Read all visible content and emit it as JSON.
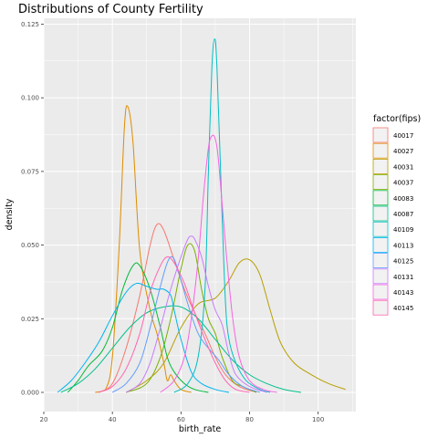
{
  "chart_data": {
    "type": "density",
    "title": "Distributions of County Fertility",
    "xlabel": "birth_rate",
    "ylabel": "density",
    "xlim": [
      20,
      111
    ],
    "ylim": [
      -0.0065,
      0.127
    ],
    "xticks": [
      20,
      40,
      60,
      80,
      100
    ],
    "yticks": [
      0.0,
      0.025,
      0.05,
      0.075,
      0.1,
      0.125
    ],
    "ytick_labels": [
      "0.000",
      "0.025",
      "0.050",
      "0.075",
      "0.100",
      "0.125"
    ],
    "grid": true,
    "legend_title": "factor(fips)",
    "legend_position": "right",
    "series": [
      {
        "name": "40017",
        "color": "#F8766D",
        "points": [
          [
            36,
            0
          ],
          [
            40,
            0.003
          ],
          [
            44,
            0.015
          ],
          [
            48,
            0.033
          ],
          [
            51,
            0.05
          ],
          [
            53,
            0.057
          ],
          [
            55,
            0.055
          ],
          [
            58,
            0.045
          ],
          [
            61,
            0.035
          ],
          [
            64,
            0.027
          ],
          [
            67,
            0.02
          ],
          [
            70,
            0.012
          ],
          [
            73,
            0.006
          ],
          [
            77,
            0.002
          ],
          [
            82,
            0
          ]
        ]
      },
      {
        "name": "40027",
        "color": "#DE8C00",
        "points": [
          [
            35,
            0
          ],
          [
            38,
            0.001
          ],
          [
            40,
            0.012
          ],
          [
            42,
            0.05
          ],
          [
            43.5,
            0.09
          ],
          [
            44.5,
            0.097
          ],
          [
            46,
            0.085
          ],
          [
            48,
            0.048
          ],
          [
            51,
            0.028
          ],
          [
            53,
            0.02
          ],
          [
            55,
            0.01
          ],
          [
            56,
            0.004
          ],
          [
            57,
            0.006
          ],
          [
            58,
            0.004
          ],
          [
            60,
            0.001
          ],
          [
            63,
            0
          ]
        ]
      },
      {
        "name": "40031",
        "color": "#B79F00",
        "points": [
          [
            44,
            0
          ],
          [
            50,
            0.004
          ],
          [
            55,
            0.01
          ],
          [
            60,
            0.022
          ],
          [
            65,
            0.03
          ],
          [
            70,
            0.032
          ],
          [
            74,
            0.038
          ],
          [
            77,
            0.044
          ],
          [
            80,
            0.045
          ],
          [
            83,
            0.04
          ],
          [
            86,
            0.028
          ],
          [
            89,
            0.017
          ],
          [
            93,
            0.01
          ],
          [
            98,
            0.006
          ],
          [
            103,
            0.003
          ],
          [
            108,
            0.001
          ]
        ]
      },
      {
        "name": "40037",
        "color": "#7CAE00",
        "points": [
          [
            44,
            0
          ],
          [
            50,
            0.003
          ],
          [
            54,
            0.012
          ],
          [
            57,
            0.025
          ],
          [
            60,
            0.042
          ],
          [
            62,
            0.05
          ],
          [
            64,
            0.048
          ],
          [
            66,
            0.035
          ],
          [
            68,
            0.025
          ],
          [
            70,
            0.02
          ],
          [
            72,
            0.012
          ],
          [
            75,
            0.004
          ],
          [
            78,
            0.002
          ],
          [
            82,
            0
          ]
        ]
      },
      {
        "name": "40083",
        "color": "#00BA38",
        "points": [
          [
            27,
            0
          ],
          [
            30,
            0.004
          ],
          [
            33,
            0.009
          ],
          [
            37,
            0.014
          ],
          [
            40,
            0.022
          ],
          [
            43,
            0.035
          ],
          [
            46,
            0.043
          ],
          [
            48,
            0.043
          ],
          [
            51,
            0.035
          ],
          [
            54,
            0.022
          ],
          [
            56,
            0.012
          ],
          [
            58,
            0.007
          ],
          [
            61,
            0.003
          ],
          [
            64,
            0.001
          ],
          [
            68,
            0
          ]
        ]
      },
      {
        "name": "40087",
        "color": "#00C08B",
        "points": [
          [
            25,
            0
          ],
          [
            30,
            0.003
          ],
          [
            35,
            0.008
          ],
          [
            40,
            0.015
          ],
          [
            45,
            0.022
          ],
          [
            50,
            0.027
          ],
          [
            55,
            0.029
          ],
          [
            60,
            0.029
          ],
          [
            65,
            0.025
          ],
          [
            70,
            0.018
          ],
          [
            75,
            0.011
          ],
          [
            80,
            0.006
          ],
          [
            85,
            0.003
          ],
          [
            90,
            0.001
          ],
          [
            95,
            0
          ]
        ]
      },
      {
        "name": "40109",
        "color": "#00BFC4",
        "points": [
          [
            58,
            0
          ],
          [
            62,
            0.003
          ],
          [
            65,
            0.012
          ],
          [
            67,
            0.035
          ],
          [
            68,
            0.075
          ],
          [
            69,
            0.11
          ],
          [
            69.8,
            0.12
          ],
          [
            70.5,
            0.11
          ],
          [
            72,
            0.06
          ],
          [
            73,
            0.03
          ],
          [
            74,
            0.018
          ],
          [
            76,
            0.01
          ],
          [
            79,
            0.004
          ],
          [
            83,
            0.001
          ],
          [
            86,
            0
          ]
        ]
      },
      {
        "name": "40113",
        "color": "#00B4F0",
        "points": [
          [
            24,
            0
          ],
          [
            28,
            0.004
          ],
          [
            32,
            0.01
          ],
          [
            36,
            0.017
          ],
          [
            40,
            0.026
          ],
          [
            44,
            0.034
          ],
          [
            47,
            0.037
          ],
          [
            50,
            0.036
          ],
          [
            53,
            0.035
          ],
          [
            55,
            0.035
          ],
          [
            57,
            0.033
          ],
          [
            58,
            0.028
          ],
          [
            60,
            0.018
          ],
          [
            63,
            0.007
          ],
          [
            66,
            0.003
          ],
          [
            70,
            0.001
          ],
          [
            74,
            0
          ]
        ]
      },
      {
        "name": "40125",
        "color": "#619CFF",
        "points": [
          [
            40,
            0
          ],
          [
            44,
            0.003
          ],
          [
            48,
            0.01
          ],
          [
            51,
            0.022
          ],
          [
            54,
            0.036
          ],
          [
            56,
            0.044
          ],
          [
            57.5,
            0.046
          ],
          [
            59,
            0.042
          ],
          [
            62,
            0.03
          ],
          [
            65,
            0.02
          ],
          [
            68,
            0.015
          ],
          [
            71,
            0.011
          ],
          [
            74,
            0.006
          ],
          [
            78,
            0.002
          ],
          [
            83,
            0
          ]
        ]
      },
      {
        "name": "40131",
        "color": "#C77CFF",
        "points": [
          [
            44,
            0
          ],
          [
            48,
            0.003
          ],
          [
            51,
            0.01
          ],
          [
            54,
            0.022
          ],
          [
            57,
            0.035
          ],
          [
            60,
            0.046
          ],
          [
            62,
            0.052
          ],
          [
            63,
            0.053
          ],
          [
            64,
            0.052
          ],
          [
            66,
            0.046
          ],
          [
            68,
            0.036
          ],
          [
            70,
            0.028
          ],
          [
            72,
            0.023
          ],
          [
            74,
            0.013
          ],
          [
            76,
            0.006
          ],
          [
            80,
            0.002
          ],
          [
            85,
            0
          ]
        ]
      },
      {
        "name": "40143",
        "color": "#F564E3",
        "points": [
          [
            54,
            0
          ],
          [
            58,
            0.004
          ],
          [
            61,
            0.012
          ],
          [
            63,
            0.025
          ],
          [
            65,
            0.045
          ],
          [
            66.5,
            0.066
          ],
          [
            68,
            0.083
          ],
          [
            69,
            0.087
          ],
          [
            70,
            0.086
          ],
          [
            71,
            0.078
          ],
          [
            73,
            0.05
          ],
          [
            75,
            0.026
          ],
          [
            77,
            0.012
          ],
          [
            80,
            0.004
          ],
          [
            84,
            0.001
          ],
          [
            88,
            0
          ]
        ]
      },
      {
        "name": "40145",
        "color": "#FF64B0",
        "points": [
          [
            36,
            0
          ],
          [
            40,
            0.002
          ],
          [
            44,
            0.008
          ],
          [
            48,
            0.02
          ],
          [
            51,
            0.034
          ],
          [
            54,
            0.043
          ],
          [
            56,
            0.046
          ],
          [
            58,
            0.044
          ],
          [
            61,
            0.037
          ],
          [
            64,
            0.027
          ],
          [
            67,
            0.018
          ],
          [
            70,
            0.01
          ],
          [
            73,
            0.004
          ],
          [
            76,
            0.001
          ],
          [
            80,
            0
          ]
        ]
      }
    ]
  }
}
